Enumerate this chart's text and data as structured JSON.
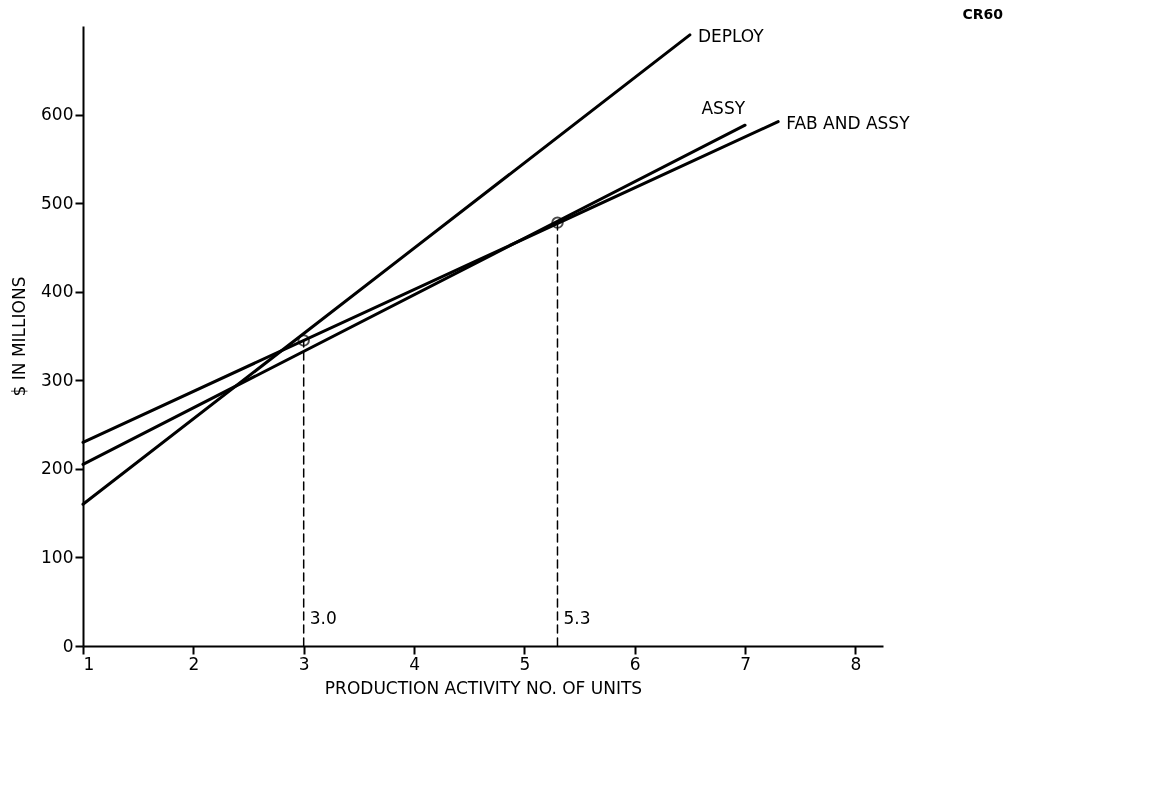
{
  "chart_data": {
    "type": "line",
    "xlabel": "PRODUCTION ACTIVITY NO. OF UNITS",
    "ylabel": "$ IN MILLIONS",
    "xlim": [
      1,
      8.25
    ],
    "ylim": [
      0,
      700
    ],
    "xticks": [
      1,
      2,
      3,
      4,
      5,
      6,
      7,
      8
    ],
    "yticks": [
      0,
      100,
      200,
      300,
      400,
      500,
      600
    ],
    "grid": false,
    "marker": "none",
    "line_style": "solid",
    "series": [
      {
        "name": "DEPLOY",
        "color": "#000000",
        "x": [
          1,
          6.5
        ],
        "values": [
          160,
          690
        ]
      },
      {
        "name": "ASSY",
        "color": "#000000",
        "x": [
          1,
          7
        ],
        "values": [
          205,
          588
        ]
      },
      {
        "name": "FAB AND ASSY",
        "color": "#000000",
        "x": [
          1,
          7.3
        ],
        "values": [
          230,
          592
        ]
      },
      {
        "type": "scatter",
        "color": "#000000",
        "marker": "circle",
        "x": [
          3.0,
          5.3
        ],
        "values": [
          345,
          478
        ]
      },
      {
        "color": "#000000",
        "line_style": "dashed",
        "x": [
          3.0,
          3.0
        ],
        "values": [
          0,
          345
        ]
      },
      {
        "color": "#000000",
        "line_style": "dashed",
        "x": [
          5.3,
          5.3
        ],
        "values": [
          0,
          478
        ]
      }
    ],
    "annotations": [
      "CR60",
      {
        "text": "3.0",
        "x": 3.0,
        "y": 30
      },
      {
        "text": "5.3",
        "x": 5.3,
        "y": 30
      }
    ]
  }
}
